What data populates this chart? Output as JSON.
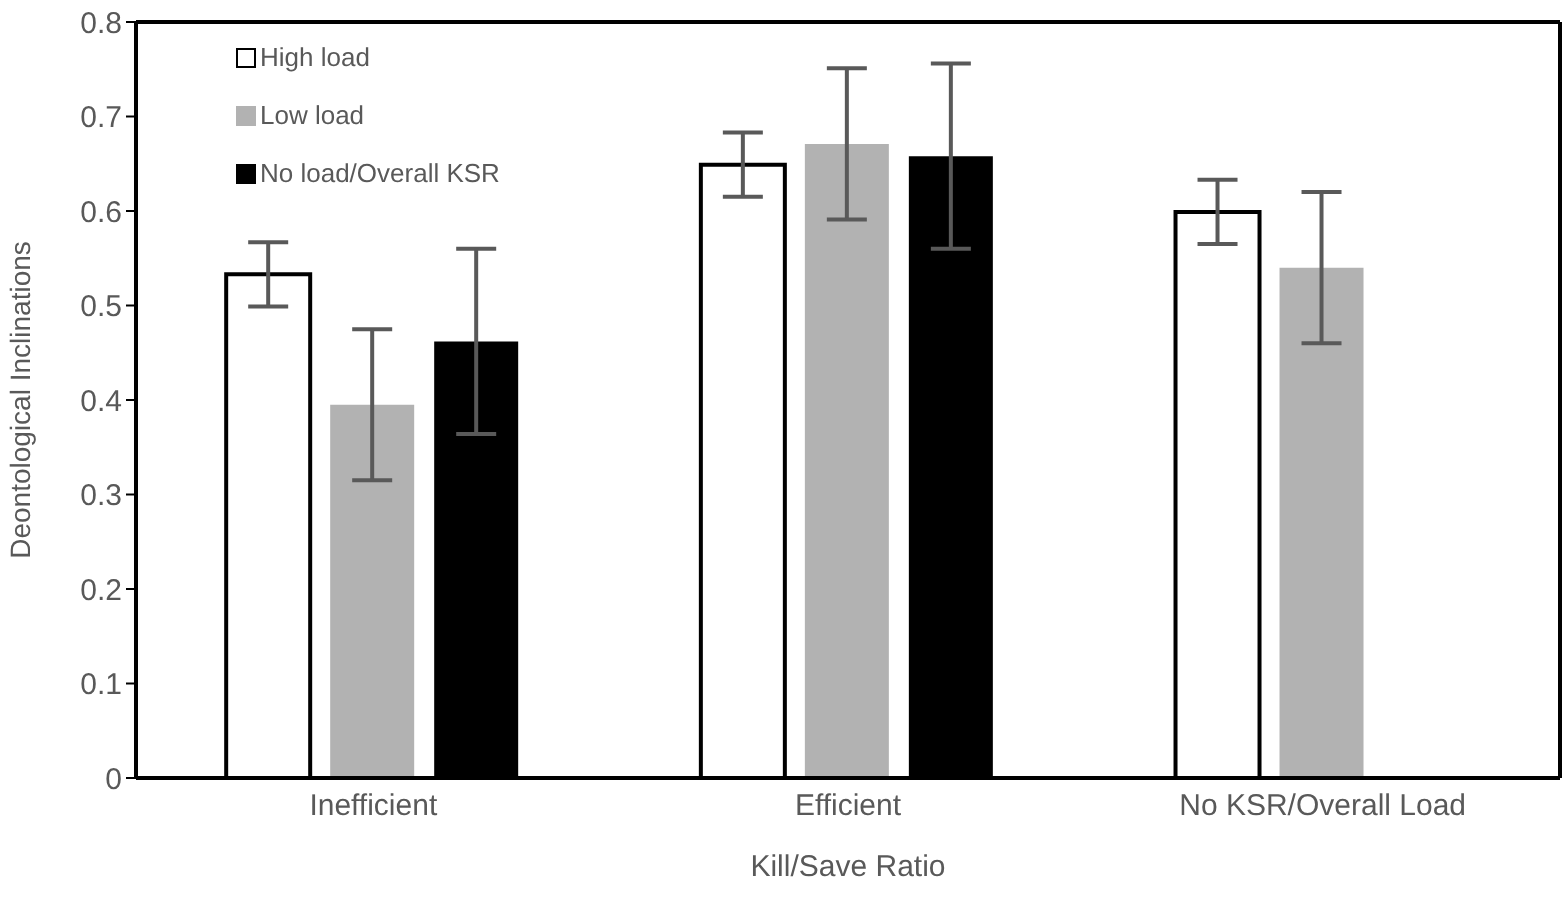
{
  "chart_data": {
    "type": "bar",
    "xlabel": "Kill/Save Ratio",
    "ylabel": "Deontological Inclinations",
    "categories": [
      "Inefficient",
      "Efficient",
      "No KSR/Overall Load"
    ],
    "series": [
      {
        "name": "High load",
        "color": "#ffffff",
        "values": [
          0.533,
          0.649,
          0.599
        ],
        "errors": [
          0.034,
          0.034,
          0.034
        ]
      },
      {
        "name": "Low load",
        "color": "#b2b2b2",
        "values": [
          0.395,
          0.671,
          0.54
        ],
        "errors": [
          0.08,
          0.08,
          0.08
        ]
      },
      {
        "name": "No load/Overall KSR",
        "color": "#000000",
        "values": [
          0.462,
          0.658,
          null
        ],
        "errors": [
          0.098,
          0.098,
          null
        ]
      }
    ],
    "ylim": [
      0,
      0.8
    ],
    "yticks": [
      0,
      0.1,
      0.2,
      0.3,
      0.4,
      0.5,
      0.6,
      0.7,
      0.8
    ],
    "grid": false,
    "legend": "top left"
  }
}
